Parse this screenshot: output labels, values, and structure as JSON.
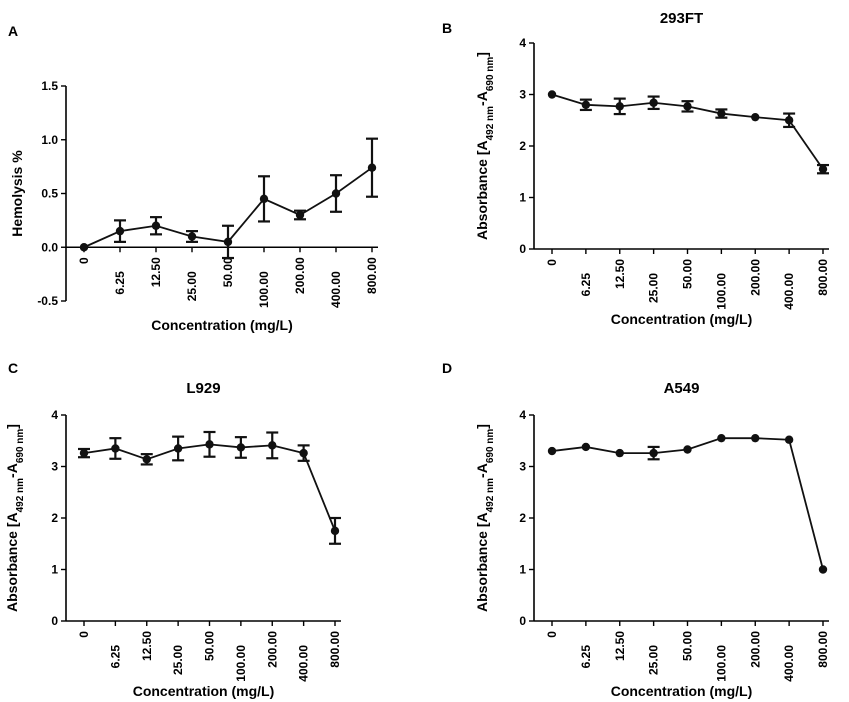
{
  "chart_data": [
    {
      "panel": "A",
      "type": "line",
      "title": "",
      "xlabel": "Concentration (mg/L)",
      "ylabel": "Hemolysis %",
      "categories": [
        "0",
        "6.25",
        "12.50",
        "25.00",
        "50.00",
        "100.00",
        "200.00",
        "400.00",
        "800.00"
      ],
      "values": [
        0.0,
        0.15,
        0.2,
        0.1,
        0.05,
        0.45,
        0.3,
        0.5,
        0.74
      ],
      "errors": [
        0.0,
        0.1,
        0.08,
        0.05,
        0.15,
        0.21,
        0.04,
        0.17,
        0.27
      ],
      "ylim": [
        -0.5,
        1.5
      ],
      "yticks": [
        -0.5,
        0.0,
        0.5,
        1.0,
        1.5
      ],
      "yticklabels": [
        "-0.5",
        "0.0",
        "0.5",
        "1.0",
        "1.5"
      ]
    },
    {
      "panel": "B",
      "type": "line",
      "title": "293FT",
      "xlabel": "Concentration (mg/L)",
      "ylabel": {
        "prefix": "Absorbance [A",
        "sub1": "492 nm",
        "mid": "-A",
        "sub2": "690 nm",
        "suffix": "]"
      },
      "categories": [
        "0",
        "6.25",
        "12.50",
        "25.00",
        "50.00",
        "100.00",
        "200.00",
        "400.00",
        "800.00"
      ],
      "values": [
        3.0,
        2.8,
        2.77,
        2.84,
        2.77,
        2.63,
        2.56,
        2.5,
        1.55
      ],
      "errors": [
        0.0,
        0.1,
        0.15,
        0.12,
        0.1,
        0.08,
        0.0,
        0.13,
        0.08
      ],
      "ylim": [
        0,
        4
      ],
      "yticks": [
        0,
        1,
        2,
        3,
        4
      ],
      "yticklabels": [
        "0",
        "1",
        "2",
        "3",
        "4"
      ]
    },
    {
      "panel": "C",
      "type": "line",
      "title": "L929",
      "xlabel": "Concentration (mg/L)",
      "ylabel": {
        "prefix": "Absorbance [A",
        "sub1": "492 nm",
        "mid": "-A",
        "sub2": "690 nm",
        "suffix": "]"
      },
      "categories": [
        "0",
        "6.25",
        "12.50",
        "25.00",
        "50.00",
        "100.00",
        "200.00",
        "400.00",
        "800.00"
      ],
      "values": [
        3.26,
        3.35,
        3.14,
        3.35,
        3.43,
        3.37,
        3.41,
        3.26,
        1.75
      ],
      "errors": [
        0.08,
        0.2,
        0.1,
        0.23,
        0.24,
        0.2,
        0.25,
        0.15,
        0.25
      ],
      "ylim": [
        0,
        4
      ],
      "yticks": [
        0,
        1,
        2,
        3,
        4
      ],
      "yticklabels": [
        "0",
        "1",
        "2",
        "3",
        "4"
      ]
    },
    {
      "panel": "D",
      "type": "line",
      "title": "A549",
      "xlabel": "Concentration (mg/L)",
      "ylabel": {
        "prefix": "Absorbance [A",
        "sub1": "492 nm",
        "mid": "-A",
        "sub2": "690 nm",
        "suffix": "]"
      },
      "categories": [
        "0",
        "6.25",
        "12.50",
        "25.00",
        "50.00",
        "100.00",
        "200.00",
        "400.00",
        "800.00"
      ],
      "values": [
        3.3,
        3.38,
        3.26,
        3.26,
        3.33,
        3.55,
        3.55,
        3.52,
        1.0
      ],
      "errors": [
        0.0,
        0.0,
        0.0,
        0.12,
        0.0,
        0.0,
        0.0,
        0.0,
        0.0
      ],
      "ylim": [
        0,
        4
      ],
      "yticks": [
        0,
        1,
        2,
        3,
        4
      ],
      "yticklabels": [
        "0",
        "1",
        "2",
        "3",
        "4"
      ]
    }
  ]
}
